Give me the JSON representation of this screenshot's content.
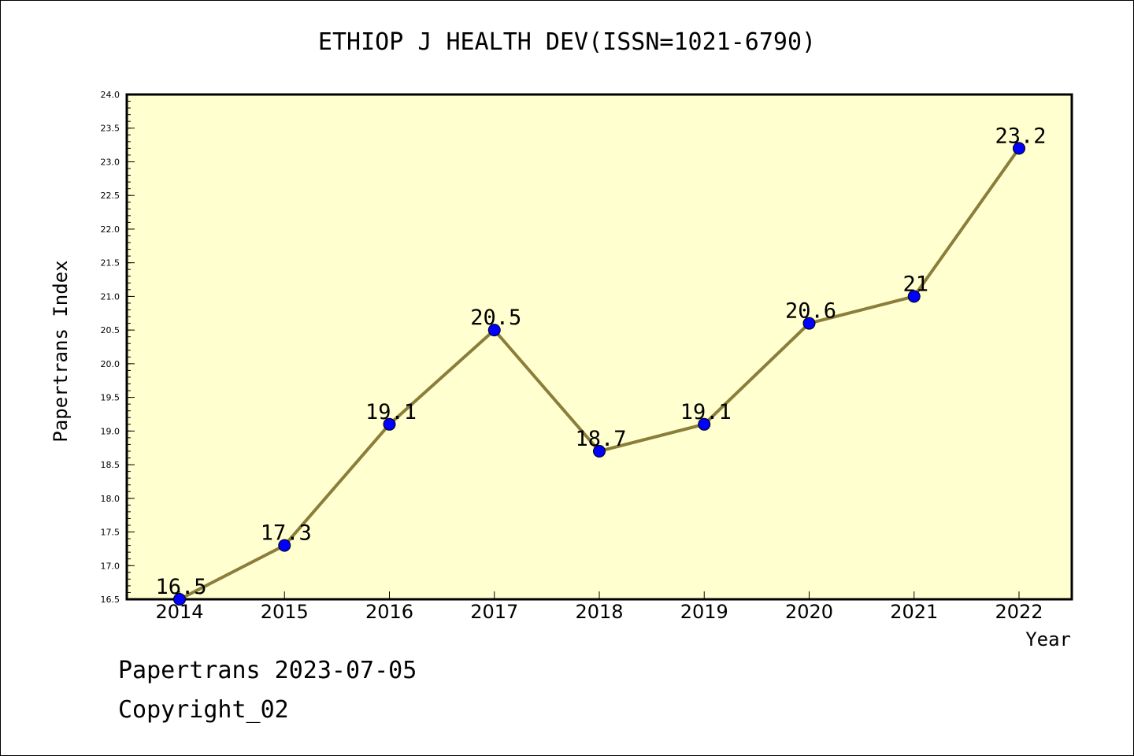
{
  "chart_data": {
    "type": "line",
    "title": "ETHIOP J HEALTH DEV(ISSN=1021-6790)",
    "xlabel": "Year",
    "ylabel": "Papertrans Index",
    "categories": [
      "2014",
      "2015",
      "2016",
      "2017",
      "2018",
      "2019",
      "2020",
      "2021",
      "2022"
    ],
    "values": [
      16.5,
      17.3,
      19.1,
      20.5,
      18.7,
      19.1,
      20.6,
      21,
      23.2
    ],
    "data_labels": [
      "16.5",
      "17.3",
      "19.1",
      "20.5",
      "18.7",
      "19.1",
      "20.6",
      "21",
      "23.2"
    ],
    "ylim": [
      16.5,
      24.0
    ],
    "yticks": [
      "16.5",
      "17.0",
      "17.5",
      "18.0",
      "18.5",
      "19.0",
      "19.5",
      "20.0",
      "20.5",
      "21.0",
      "21.5",
      "22.0",
      "22.5",
      "23.0",
      "23.5",
      "24.0"
    ],
    "grid": false,
    "colors": {
      "plot_background": "#ffffd0",
      "line": "#8b7d3a",
      "marker": "#0000ff"
    }
  },
  "footer": {
    "date_text": "Papertrans 2023-07-05",
    "copyright_text": "Copyright_02"
  }
}
